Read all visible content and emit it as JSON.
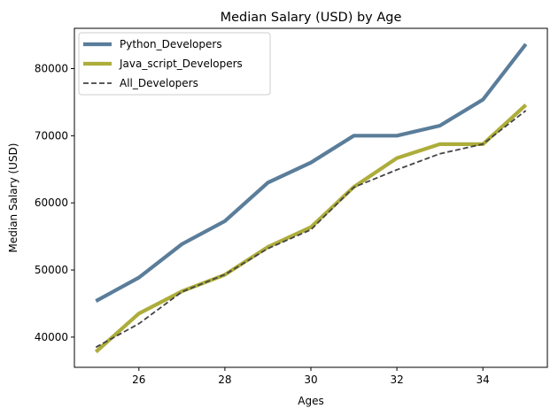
{
  "chart_data": {
    "type": "line",
    "title": "Median Salary (USD) by Age",
    "xlabel": "Ages",
    "ylabel": "Median Salary (USD)",
    "x": [
      25,
      26,
      27,
      28,
      29,
      30,
      31,
      32,
      33,
      34,
      35
    ],
    "xlim": [
      24.5,
      35.5
    ],
    "ylim": [
      35500,
      86000
    ],
    "xticks": [
      26,
      28,
      30,
      32,
      34
    ],
    "yticks": [
      40000,
      50000,
      60000,
      70000,
      80000
    ],
    "grid": false,
    "legend_position": "top-left",
    "series": [
      {
        "name": "Python_Developers",
        "values": [
          45372,
          48876,
          53850,
          57287,
          63016,
          65998,
          70003,
          70000,
          71496,
          75370,
          83640
        ],
        "color": "#5a7d9a",
        "style": "solid-thick"
      },
      {
        "name": "Java_script_Developers",
        "values": [
          37810,
          43515,
          46823,
          49293,
          53437,
          56373,
          62375,
          66674,
          68745,
          68746,
          74583
        ],
        "color": "#adad3b",
        "style": "solid-thick"
      },
      {
        "name": "All_Developers",
        "values": [
          38496,
          42000,
          46752,
          49320,
          53200,
          56000,
          62316,
          64928,
          67317,
          68748,
          73752
        ],
        "color": "#444444",
        "style": "dashed"
      }
    ]
  }
}
